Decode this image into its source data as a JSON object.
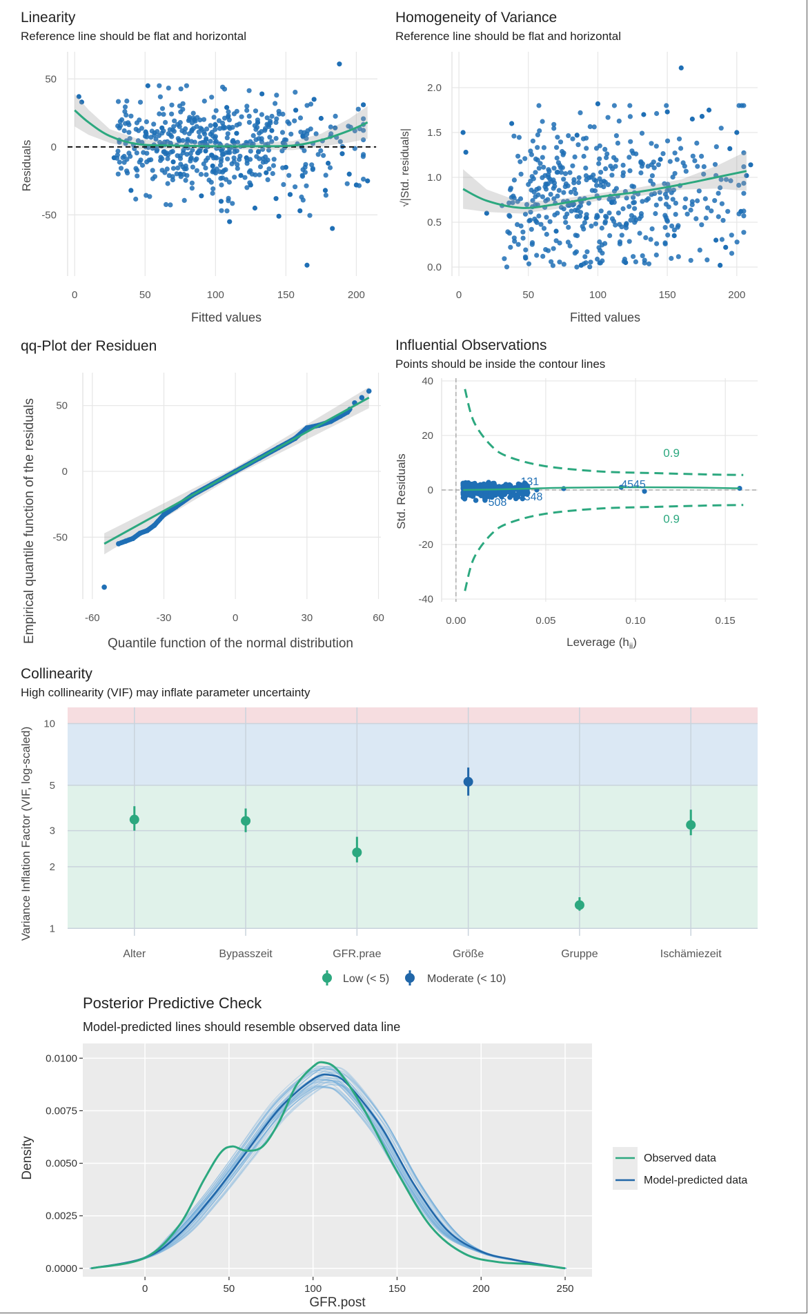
{
  "chart_data": [
    {
      "panel": "linearity",
      "type": "scatter",
      "title": "Linearity",
      "subtitle": "Reference line should be flat and horizontal",
      "xlabel": "Fitted values",
      "ylabel": "Residuals",
      "xlim": [
        -5,
        215
      ],
      "ylim": [
        -95,
        70
      ],
      "xticks": [
        0,
        50,
        100,
        150,
        200
      ],
      "yticks": [
        -50,
        0,
        50
      ],
      "reference_line": 0,
      "smooth": [
        [
          0,
          27
        ],
        [
          10,
          18
        ],
        [
          25,
          8
        ],
        [
          45,
          2
        ],
        [
          70,
          1
        ],
        [
          100,
          0.5
        ],
        [
          130,
          0.5
        ],
        [
          155,
          1
        ],
        [
          175,
          5
        ],
        [
          195,
          12
        ],
        [
          208,
          18
        ]
      ],
      "band_halfwidth": [
        [
          0,
          12
        ],
        [
          25,
          5
        ],
        [
          60,
          3
        ],
        [
          100,
          2
        ],
        [
          150,
          3
        ],
        [
          180,
          5
        ],
        [
          208,
          12
        ]
      ],
      "points": [
        [
          3,
          37
        ],
        [
          5,
          33
        ],
        [
          28,
          -8
        ],
        [
          40,
          -32
        ],
        [
          52,
          45
        ],
        [
          62,
          14
        ],
        [
          70,
          -11
        ],
        [
          75,
          -20
        ],
        [
          85,
          20
        ],
        [
          90,
          -36
        ],
        [
          93,
          -3
        ],
        [
          98,
          -14
        ],
        [
          100,
          16
        ],
        [
          104,
          -40
        ],
        [
          108,
          29
        ],
        [
          110,
          -55
        ],
        [
          115,
          10
        ],
        [
          118,
          -21
        ],
        [
          120,
          1
        ],
        [
          122,
          -8
        ],
        [
          125,
          -28
        ],
        [
          128,
          -45
        ],
        [
          130,
          18
        ],
        [
          133,
          39
        ],
        [
          136,
          -19
        ],
        [
          140,
          12
        ],
        [
          143,
          -38
        ],
        [
          145,
          -51
        ],
        [
          148,
          3
        ],
        [
          150,
          -15
        ],
        [
          153,
          -35
        ],
        [
          157,
          27
        ],
        [
          160,
          -47
        ],
        [
          162,
          8
        ],
        [
          165,
          -87
        ],
        [
          170,
          35
        ],
        [
          175,
          21
        ],
        [
          178,
          -32
        ],
        [
          180,
          -12
        ],
        [
          183,
          -60
        ],
        [
          185,
          14
        ],
        [
          188,
          61
        ],
        [
          190,
          -5
        ],
        [
          195,
          -20
        ],
        [
          200,
          -28
        ],
        [
          205,
          31
        ],
        [
          208,
          -25
        ]
      ],
      "point_note": "dense cloud of about 500 residuals; representative values listed"
    },
    {
      "panel": "homogeneity",
      "type": "scatter",
      "title": "Homogeneity of Variance",
      "subtitle": "Reference line should be flat and horizontal",
      "xlabel": "Fitted values",
      "ylabel": "√|Std. residuals|",
      "xlim": [
        -5,
        215
      ],
      "ylim": [
        -0.1,
        2.4
      ],
      "xticks": [
        0,
        50,
        100,
        150,
        200
      ],
      "yticks": [
        0.0,
        0.5,
        1.0,
        1.5,
        2.0
      ],
      "smooth": [
        [
          3,
          0.87
        ],
        [
          20,
          0.74
        ],
        [
          45,
          0.66
        ],
        [
          70,
          0.7
        ],
        [
          100,
          0.78
        ],
        [
          130,
          0.84
        ],
        [
          160,
          0.92
        ],
        [
          185,
          1.0
        ],
        [
          207,
          1.07
        ]
      ],
      "band_halfwidth": [
        [
          3,
          0.22
        ],
        [
          30,
          0.07
        ],
        [
          100,
          0.04
        ],
        [
          170,
          0.06
        ],
        [
          207,
          0.22
        ]
      ],
      "points": [
        [
          3,
          1.5
        ],
        [
          5,
          1.28
        ],
        [
          20,
          0.6
        ],
        [
          38,
          1.6
        ],
        [
          48,
          0.1
        ],
        [
          70,
          0.4
        ],
        [
          85,
          1.47
        ],
        [
          88,
          0.02
        ],
        [
          100,
          1.82
        ],
        [
          110,
          0.72
        ],
        [
          120,
          0.05
        ],
        [
          133,
          1.7
        ],
        [
          145,
          1.2
        ],
        [
          150,
          1.73
        ],
        [
          155,
          0.35
        ],
        [
          160,
          2.22
        ],
        [
          168,
          1.65
        ],
        [
          175,
          1.68
        ],
        [
          180,
          1.75
        ],
        [
          185,
          0.3
        ],
        [
          188,
          0.02
        ],
        [
          192,
          0.22
        ],
        [
          195,
          1.32
        ],
        [
          200,
          1.5
        ],
        [
          203,
          0.62
        ],
        [
          207,
          1.02
        ],
        [
          210,
          1.14
        ]
      ],
      "point_note": "dense cloud of about 500 points; representative values listed"
    },
    {
      "panel": "qq",
      "type": "scatter",
      "title": "qq-Plot der Residuen",
      "xlabel": "Quantile function of the normal distribution",
      "ylabel": "Empirical quantile function of the residuals",
      "xlim": [
        -64,
        61
      ],
      "ylim": [
        -97,
        75
      ],
      "xticks": [
        -60,
        -30,
        0,
        30,
        60
      ],
      "yticks": [
        -50,
        0,
        50
      ],
      "fit_line": [
        [
          -55,
          -55
        ],
        [
          56,
          56
        ]
      ],
      "points": [
        [
          -55,
          -88
        ],
        [
          -49,
          -55
        ],
        [
          -46,
          -53
        ],
        [
          -43,
          -51
        ],
        [
          -40,
          -47
        ],
        [
          -37,
          -45
        ],
        [
          -34,
          -41
        ],
        [
          -30,
          -33
        ],
        [
          -25,
          -27
        ],
        [
          -18,
          -18
        ],
        [
          -10,
          -10
        ],
        [
          0,
          0
        ],
        [
          10,
          10
        ],
        [
          18,
          18
        ],
        [
          25,
          25
        ],
        [
          30,
          33
        ],
        [
          35,
          35
        ],
        [
          40,
          38
        ],
        [
          44,
          42
        ],
        [
          47,
          45
        ],
        [
          50,
          52
        ],
        [
          53,
          56
        ],
        [
          56,
          61
        ]
      ],
      "point_note": "about 500 ordered points; representative values listed"
    },
    {
      "panel": "influential",
      "type": "scatter",
      "title": "Influential Observations",
      "subtitle": "Points should be inside the contour lines",
      "xlabel": "Leverage (h",
      "xlabel_sub": "ii",
      "xlabel_end": ")",
      "ylabel": "Std. Residuals",
      "xlim": [
        -0.008,
        0.168
      ],
      "ylim": [
        -41,
        41
      ],
      "xticks": [
        "0.00",
        "0.05",
        "0.10",
        "0.15"
      ],
      "yticks": [
        -40,
        -20,
        0,
        20,
        40
      ],
      "contour_label": "0.9",
      "contour": [
        [
          0.005,
          37
        ],
        [
          0.01,
          25
        ],
        [
          0.02,
          16
        ],
        [
          0.03,
          12
        ],
        [
          0.05,
          8.7
        ],
        [
          0.08,
          6.8
        ],
        [
          0.11,
          6.2
        ],
        [
          0.14,
          5.7
        ],
        [
          0.16,
          5.5
        ]
      ],
      "labels": [
        {
          "text": "131",
          "x": 0.036,
          "y": 3
        },
        {
          "text": "348",
          "x": 0.038,
          "y": -2.5
        },
        {
          "text": "508",
          "x": 0.018,
          "y": -4.5
        },
        {
          "text": "4545",
          "x": 0.092,
          "y": 2
        }
      ],
      "points": [
        [
          0.004,
          2
        ],
        [
          0.008,
          -2
        ],
        [
          0.012,
          1
        ],
        [
          0.016,
          -3
        ],
        [
          0.02,
          2
        ],
        [
          0.024,
          -1
        ],
        [
          0.028,
          1.5
        ],
        [
          0.032,
          -2
        ],
        [
          0.036,
          0.5
        ],
        [
          0.04,
          -1
        ],
        [
          0.045,
          0
        ],
        [
          0.06,
          0.5
        ],
        [
          0.092,
          1
        ],
        [
          0.105,
          -0.5
        ],
        [
          0.158,
          0.6
        ]
      ]
    },
    {
      "panel": "collinearity",
      "type": "scatter",
      "title": "Collinearity",
      "subtitle": "High collinearity (VIF) may inflate parameter uncertainty",
      "ylabel": "Variance Inflation Factor (VIF, log-scaled)",
      "y_scale": "log",
      "ylim": [
        0.92,
        12
      ],
      "yticks": [
        1,
        2,
        3,
        5,
        10
      ],
      "bands": [
        {
          "from": 1,
          "to": 5,
          "color": "#e0f2ea"
        },
        {
          "from": 5,
          "to": 10,
          "color": "#dbe8f4"
        },
        {
          "from": 10,
          "to": 12,
          "color": "#f6dde0"
        }
      ],
      "categories": [
        "Alter",
        "Bypasszeit",
        "GFR.prae",
        "Größe",
        "Gruppe",
        "Ischämiezeit"
      ],
      "values": [
        3.4,
        3.35,
        2.35,
        5.2,
        1.3,
        3.2
      ],
      "ci": [
        [
          3.0,
          3.95
        ],
        [
          2.95,
          3.85
        ],
        [
          2.1,
          2.8
        ],
        [
          4.45,
          6.1
        ],
        [
          1.22,
          1.42
        ],
        [
          2.85,
          3.8
        ]
      ],
      "groups": [
        "Low (< 5)",
        "Low (< 5)",
        "Low (< 5)",
        "Moderate (< 10)",
        "Low (< 5)",
        "Low (< 5)"
      ],
      "legend": [
        {
          "name": "Low (< 5)",
          "color": "#2ca87f"
        },
        {
          "name": "Moderate (< 10)",
          "color": "#2066a8"
        }
      ]
    },
    {
      "panel": "ppcheck",
      "type": "line",
      "title": "Posterior Predictive Check",
      "subtitle": "Model-predicted lines should resemble observed data line",
      "xlabel": "GFR.post",
      "ylabel": "Density",
      "xlim": [
        -37,
        266
      ],
      "ylim": [
        -0.0004,
        0.0107
      ],
      "xticks": [
        0,
        50,
        100,
        150,
        200,
        250
      ],
      "yticks": [
        "0.0000",
        "0.0025",
        "0.0050",
        "0.0075",
        "0.0100"
      ],
      "series": [
        {
          "name": "Observed data",
          "color": "#2ca87f",
          "x": [
            -32,
            0,
            20,
            35,
            45,
            52,
            60,
            70,
            80,
            90,
            100,
            106,
            115,
            130,
            150,
            170,
            190,
            210,
            230,
            250
          ],
          "y": [
            0.0,
            0.0005,
            0.002,
            0.0042,
            0.0055,
            0.0058,
            0.0056,
            0.0058,
            0.007,
            0.0087,
            0.0096,
            0.0098,
            0.0094,
            0.0076,
            0.0046,
            0.002,
            0.0007,
            0.0003,
            0.0002,
            0.0
          ]
        },
        {
          "name": "Model-predicted data",
          "color": "#2066a8",
          "x": [
            -32,
            0,
            20,
            40,
            60,
            80,
            100,
            110,
            120,
            140,
            160,
            180,
            200,
            220,
            250
          ],
          "y": [
            0.0,
            0.0005,
            0.0016,
            0.0034,
            0.0055,
            0.0076,
            0.009,
            0.0092,
            0.0088,
            0.0068,
            0.004,
            0.0018,
            0.0008,
            0.0004,
            0.0
          ]
        }
      ],
      "legend": [
        "Observed data",
        "Model-predicted data"
      ]
    }
  ]
}
